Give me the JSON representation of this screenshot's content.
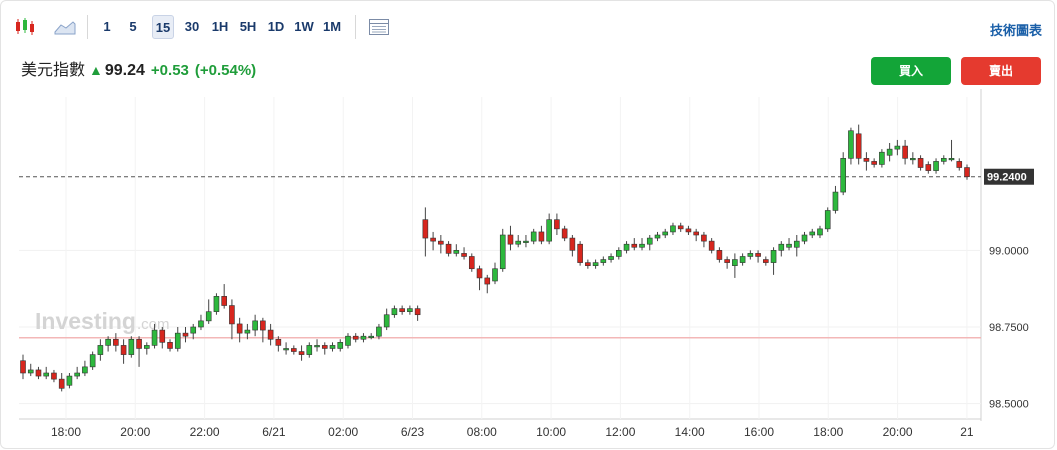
{
  "toolbar": {
    "candle_icon": "candlestick-icon",
    "area_icon": "area-chart-icon",
    "intervals": [
      "1",
      "5",
      "15",
      "30",
      "1H",
      "5H",
      "1D",
      "1W",
      "1M"
    ],
    "active_interval": "15",
    "table_icon": "table-view-icon",
    "tech_chart_link": "技術圖表"
  },
  "quote": {
    "name": "美元指數",
    "arrow_icon": "up-arrow-icon",
    "price": "99.24",
    "change": "+0.53",
    "change_pct": "(+0.54%)"
  },
  "actions": {
    "buy_label": "買入",
    "sell_label": "賣出"
  },
  "colors": {
    "up": "#2db83d",
    "down": "#d7261e",
    "up_text": "#1f9d3a",
    "buy": "#13a538",
    "sell": "#e53a2f"
  },
  "watermark": {
    "brand": "Investing",
    "suffix": ".com"
  },
  "chart_data": {
    "type": "candlestick",
    "title": "",
    "xlabel": "",
    "ylabel": "",
    "ylim": [
      98.45,
      99.5
    ],
    "y_ticks": [
      "98.5000",
      "98.7500",
      "99.0000"
    ],
    "x_ticks": [
      "18:00",
      "20:00",
      "22:00",
      "6/21",
      "02:00",
      "6/23",
      "08:00",
      "10:00",
      "12:00",
      "14:00",
      "16:00",
      "18:00",
      "20:00",
      "21"
    ],
    "current_price_label": "99.2400",
    "current_price": 99.24,
    "reference_line": 98.715,
    "grid": true,
    "candles": [
      [
        98.64,
        98.6,
        98.66,
        98.58
      ],
      [
        98.6,
        98.61,
        98.63,
        98.59
      ],
      [
        98.61,
        98.59,
        98.62,
        98.58
      ],
      [
        98.59,
        98.6,
        98.62,
        98.58
      ],
      [
        98.6,
        98.58,
        98.61,
        98.57
      ],
      [
        98.58,
        98.55,
        98.6,
        98.54
      ],
      [
        98.56,
        98.59,
        98.6,
        98.55
      ],
      [
        98.59,
        98.6,
        98.62,
        98.58
      ],
      [
        98.6,
        98.62,
        98.64,
        98.59
      ],
      [
        98.62,
        98.66,
        98.67,
        98.61
      ],
      [
        98.66,
        98.69,
        98.71,
        98.64
      ],
      [
        98.69,
        98.71,
        98.72,
        98.67
      ],
      [
        98.71,
        98.69,
        98.73,
        98.67
      ],
      [
        98.69,
        98.66,
        98.71,
        98.63
      ],
      [
        98.66,
        98.71,
        98.72,
        98.65
      ],
      [
        98.71,
        98.68,
        98.72,
        98.62
      ],
      [
        98.68,
        98.69,
        98.7,
        98.66
      ],
      [
        98.69,
        98.74,
        98.76,
        98.68
      ],
      [
        98.74,
        98.7,
        98.75,
        98.68
      ],
      [
        98.7,
        98.68,
        98.71,
        98.67
      ],
      [
        98.68,
        98.73,
        98.75,
        98.67
      ],
      [
        98.73,
        98.72,
        98.75,
        98.7
      ],
      [
        98.73,
        98.75,
        98.76,
        98.71
      ],
      [
        98.75,
        98.77,
        98.79,
        98.74
      ],
      [
        98.77,
        98.8,
        98.84,
        98.76
      ],
      [
        98.8,
        98.85,
        98.86,
        98.79
      ],
      [
        98.85,
        98.82,
        98.89,
        98.81
      ],
      [
        98.82,
        98.76,
        98.84,
        98.71
      ],
      [
        98.76,
        98.73,
        98.78,
        98.7
      ],
      [
        98.73,
        98.74,
        98.76,
        98.71
      ],
      [
        98.74,
        98.77,
        98.79,
        98.72
      ],
      [
        98.77,
        98.74,
        98.78,
        98.7
      ],
      [
        98.74,
        98.71,
        98.76,
        98.69
      ],
      [
        98.71,
        98.69,
        98.72,
        98.67
      ],
      [
        98.68,
        98.68,
        98.7,
        98.66
      ],
      [
        98.68,
        98.67,
        98.69,
        98.66
      ],
      [
        98.67,
        98.66,
        98.69,
        98.64
      ],
      [
        98.66,
        98.69,
        98.7,
        98.65
      ],
      [
        98.69,
        98.69,
        98.71,
        98.67
      ],
      [
        98.69,
        98.68,
        98.7,
        98.66
      ],
      [
        98.68,
        98.69,
        98.7,
        98.67
      ],
      [
        98.68,
        98.7,
        98.71,
        98.67
      ],
      [
        98.69,
        98.72,
        98.73,
        98.68
      ],
      [
        98.72,
        98.71,
        98.73,
        98.7
      ],
      [
        98.71,
        98.72,
        98.73,
        98.7
      ],
      [
        98.72,
        98.72,
        98.73,
        98.71
      ],
      [
        98.72,
        98.75,
        98.76,
        98.71
      ],
      [
        98.75,
        98.79,
        98.81,
        98.74
      ],
      [
        98.79,
        98.81,
        98.82,
        98.78
      ],
      [
        98.81,
        98.8,
        98.82,
        98.79
      ],
      [
        98.8,
        98.81,
        98.82,
        98.79
      ],
      [
        98.81,
        98.79,
        98.82,
        98.77
      ],
      [
        99.1,
        99.04,
        99.14,
        98.98
      ],
      [
        99.04,
        99.03,
        99.06,
        99.0
      ],
      [
        99.03,
        99.02,
        99.05,
        98.99
      ],
      [
        99.02,
        98.99,
        99.03,
        98.98
      ],
      [
        98.99,
        99.0,
        99.02,
        98.98
      ],
      [
        98.99,
        98.98,
        99.01,
        98.97
      ],
      [
        98.98,
        98.94,
        98.99,
        98.93
      ],
      [
        98.94,
        98.91,
        98.95,
        98.87
      ],
      [
        98.91,
        98.89,
        98.92,
        98.86
      ],
      [
        98.9,
        98.94,
        98.96,
        98.89
      ],
      [
        98.94,
        99.05,
        99.07,
        98.93
      ],
      [
        99.05,
        99.02,
        99.08,
        99.0
      ],
      [
        99.02,
        99.03,
        99.05,
        99.01
      ],
      [
        99.03,
        99.03,
        99.05,
        99.01
      ],
      [
        99.03,
        99.06,
        99.07,
        99.02
      ],
      [
        99.06,
        99.03,
        99.08,
        99.02
      ],
      [
        99.03,
        99.1,
        99.12,
        99.02
      ],
      [
        99.1,
        99.07,
        99.12,
        99.05
      ],
      [
        99.07,
        99.04,
        99.08,
        99.03
      ],
      [
        99.04,
        99.0,
        99.05,
        98.98
      ],
      [
        99.02,
        98.96,
        99.03,
        98.95
      ],
      [
        98.96,
        98.95,
        98.97,
        98.94
      ],
      [
        98.95,
        98.96,
        98.97,
        98.94
      ],
      [
        98.96,
        98.97,
        98.98,
        98.95
      ],
      [
        98.97,
        98.98,
        98.99,
        98.96
      ],
      [
        98.98,
        99.0,
        99.01,
        98.97
      ],
      [
        99.0,
        99.02,
        99.03,
        98.99
      ],
      [
        99.02,
        99.01,
        99.04,
        99.0
      ],
      [
        99.01,
        99.02,
        99.04,
        99.0
      ],
      [
        99.02,
        99.04,
        99.05,
        99.0
      ],
      [
        99.04,
        99.05,
        99.06,
        99.03
      ],
      [
        99.05,
        99.06,
        99.07,
        99.04
      ],
      [
        99.06,
        99.08,
        99.09,
        99.05
      ],
      [
        99.08,
        99.07,
        99.09,
        99.06
      ],
      [
        99.07,
        99.06,
        99.08,
        99.05
      ],
      [
        99.06,
        99.05,
        99.07,
        99.03
      ],
      [
        99.05,
        99.03,
        99.06,
        99.01
      ],
      [
        99.03,
        99.0,
        99.04,
        98.99
      ],
      [
        99.0,
        98.97,
        99.01,
        98.96
      ],
      [
        98.97,
        98.96,
        98.98,
        98.94
      ],
      [
        98.95,
        98.97,
        98.99,
        98.91
      ],
      [
        98.96,
        98.98,
        98.99,
        98.95
      ],
      [
        98.98,
        98.99,
        99.0,
        98.97
      ],
      [
        98.99,
        98.98,
        99.0,
        98.96
      ],
      [
        98.97,
        98.96,
        98.98,
        98.95
      ],
      [
        98.96,
        99.0,
        99.01,
        98.92
      ],
      [
        99.0,
        99.02,
        99.03,
        98.98
      ],
      [
        99.01,
        99.02,
        99.04,
        99.0
      ],
      [
        99.01,
        99.03,
        99.05,
        98.98
      ],
      [
        99.03,
        99.05,
        99.06,
        99.02
      ],
      [
        99.05,
        99.06,
        99.07,
        99.04
      ],
      [
        99.05,
        99.07,
        99.08,
        99.04
      ],
      [
        99.07,
        99.13,
        99.14,
        99.06
      ],
      [
        99.13,
        99.19,
        99.21,
        99.12
      ],
      [
        99.19,
        99.3,
        99.32,
        99.18
      ],
      [
        99.3,
        99.39,
        99.4,
        99.28
      ],
      [
        99.38,
        99.3,
        99.41,
        99.28
      ],
      [
        99.3,
        99.29,
        99.32,
        99.26
      ],
      [
        99.29,
        99.28,
        99.3,
        99.27
      ],
      [
        99.28,
        99.32,
        99.33,
        99.27
      ],
      [
        99.31,
        99.33,
        99.35,
        99.29
      ],
      [
        99.33,
        99.34,
        99.36,
        99.31
      ],
      [
        99.34,
        99.3,
        99.36,
        99.28
      ],
      [
        99.3,
        99.3,
        99.32,
        99.28
      ],
      [
        99.3,
        99.27,
        99.31,
        99.26
      ],
      [
        99.28,
        99.26,
        99.29,
        99.25
      ],
      [
        99.26,
        99.29,
        99.3,
        99.25
      ],
      [
        99.29,
        99.3,
        99.31,
        99.28
      ],
      [
        99.3,
        99.3,
        99.36,
        99.29
      ],
      [
        99.29,
        99.27,
        99.3,
        99.26
      ],
      [
        99.27,
        99.24,
        99.28,
        99.23
      ]
    ]
  }
}
